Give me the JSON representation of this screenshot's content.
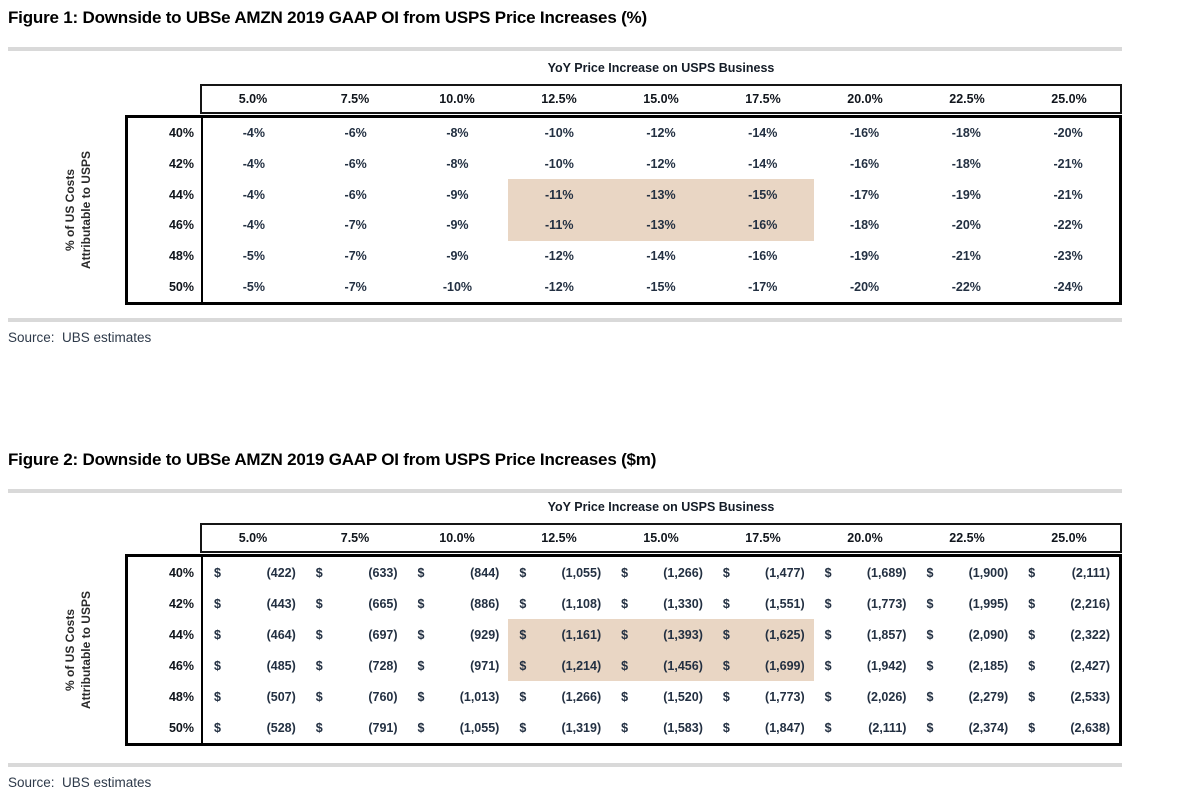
{
  "colors": {
    "highlight": "#e9d6c4",
    "rule": "#d9d9d9",
    "border": "#000000",
    "text": "#233042"
  },
  "figures": [
    {
      "id": "figure-1",
      "title": "Figure 1: Downside to UBSe AMZN 2019 GAAP OI from USPS Price Increases (%)",
      "column_group_label": "YoY Price Increase on USPS Business",
      "row_group_label": [
        "% of US Costs",
        "Attributable to USPS"
      ],
      "column_headers": [
        "5.0%",
        "7.5%",
        "10.0%",
        "12.5%",
        "15.0%",
        "17.5%",
        "20.0%",
        "22.5%",
        "25.0%"
      ],
      "row_headers": [
        "40%",
        "42%",
        "44%",
        "46%",
        "48%",
        "50%"
      ],
      "cell_format": "percent",
      "currency_symbol": "",
      "rows": [
        [
          "-4%",
          "-6%",
          "-8%",
          "-10%",
          "-12%",
          "-14%",
          "-16%",
          "-18%",
          "-20%"
        ],
        [
          "-4%",
          "-6%",
          "-8%",
          "-10%",
          "-12%",
          "-14%",
          "-16%",
          "-18%",
          "-21%"
        ],
        [
          "-4%",
          "-6%",
          "-9%",
          "-11%",
          "-13%",
          "-15%",
          "-17%",
          "-19%",
          "-21%"
        ],
        [
          "-4%",
          "-7%",
          "-9%",
          "-11%",
          "-13%",
          "-16%",
          "-18%",
          "-20%",
          "-22%"
        ],
        [
          "-5%",
          "-7%",
          "-9%",
          "-12%",
          "-14%",
          "-16%",
          "-19%",
          "-21%",
          "-23%"
        ],
        [
          "-5%",
          "-7%",
          "-10%",
          "-12%",
          "-15%",
          "-17%",
          "-20%",
          "-22%",
          "-24%"
        ]
      ],
      "highlight": {
        "row_indices": [
          2,
          3
        ],
        "col_indices": [
          3,
          4,
          5
        ]
      },
      "source": "Source:  UBS estimates"
    },
    {
      "id": "figure-2",
      "title": "Figure 2: Downside to UBSe AMZN 2019 GAAP OI from USPS Price Increases ($m)",
      "column_group_label": "YoY Price Increase on USPS Business",
      "row_group_label": [
        "% of US Costs",
        "Attributable to USPS"
      ],
      "column_headers": [
        "5.0%",
        "7.5%",
        "10.0%",
        "12.5%",
        "15.0%",
        "17.5%",
        "20.0%",
        "22.5%",
        "25.0%"
      ],
      "row_headers": [
        "40%",
        "42%",
        "44%",
        "46%",
        "48%",
        "50%"
      ],
      "cell_format": "currency",
      "currency_symbol": "$",
      "rows": [
        [
          "(422)",
          "(633)",
          "(844)",
          "(1,055)",
          "(1,266)",
          "(1,477)",
          "(1,689)",
          "(1,900)",
          "(2,111)"
        ],
        [
          "(443)",
          "(665)",
          "(886)",
          "(1,108)",
          "(1,330)",
          "(1,551)",
          "(1,773)",
          "(1,995)",
          "(2,216)"
        ],
        [
          "(464)",
          "(697)",
          "(929)",
          "(1,161)",
          "(1,393)",
          "(1,625)",
          "(1,857)",
          "(2,090)",
          "(2,322)"
        ],
        [
          "(485)",
          "(728)",
          "(971)",
          "(1,214)",
          "(1,456)",
          "(1,699)",
          "(1,942)",
          "(2,185)",
          "(2,427)"
        ],
        [
          "(507)",
          "(760)",
          "(1,013)",
          "(1,266)",
          "(1,520)",
          "(1,773)",
          "(2,026)",
          "(2,279)",
          "(2,533)"
        ],
        [
          "(528)",
          "(791)",
          "(1,055)",
          "(1,319)",
          "(1,583)",
          "(1,847)",
          "(2,111)",
          "(2,374)",
          "(2,638)"
        ]
      ],
      "highlight": {
        "row_indices": [
          2,
          3
        ],
        "col_indices": [
          3,
          4,
          5
        ]
      },
      "source": "Source:  UBS estimates"
    }
  ]
}
